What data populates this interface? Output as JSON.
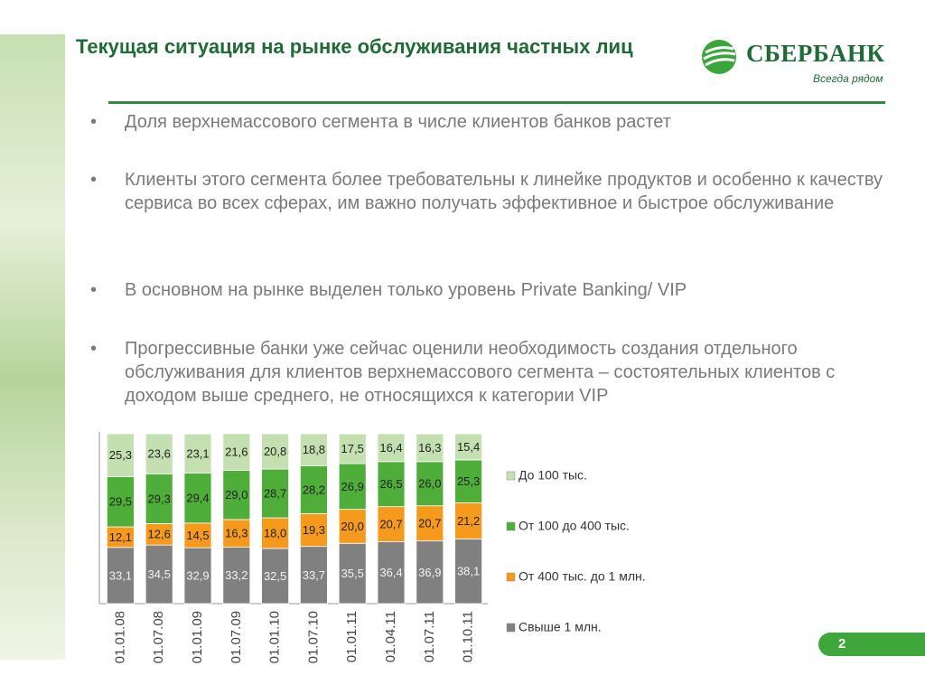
{
  "header": {
    "title": "Текущая ситуация на рынке обслуживания частных лиц",
    "logo_name": "СБЕРБАНК",
    "logo_slogan": "Всегда рядом"
  },
  "bullets": [
    "Доля верхнемассового сегмента в числе клиентов банков растет",
    "Клиенты этого сегмента более требовательны к линейке продуктов и особенно к качеству сервиса во всех сферах, им важно получать эффективное и быстрое обслуживание",
    "В основном на рынке выделен только уровень Private Banking/ VIP",
    "Прогрессивные банки уже сейчас оценили необходимость создания отдельного обслуживания для клиентов верхнемассового сегмента – состоятельных клиентов с доходом выше среднего, не относящихся к категории VIP"
  ],
  "page_number": "2",
  "chart_data": {
    "type": "stacked_bar",
    "categories": [
      "01.01.08",
      "01.07.08",
      "01.01.09",
      "01.07.09",
      "01.01.10",
      "01.07.10",
      "01.01.11",
      "01.04.11",
      "01.07.11",
      "01.10.11"
    ],
    "ylim": [
      0,
      100
    ],
    "series": [
      {
        "name": "Свыше 1 млн.",
        "color": "#808080",
        "label_color": "#f2f2f2",
        "values": [
          33.1,
          34.5,
          32.9,
          33.2,
          32.5,
          33.7,
          35.5,
          36.4,
          36.9,
          38.1
        ],
        "value_labels": [
          "33,1",
          "34,5",
          "32,9",
          "33,2",
          "32,5",
          "33,7",
          "35,5",
          "36,4",
          "36,9",
          "38,1"
        ]
      },
      {
        "name": "От 400 тыс. до 1 млн.",
        "color": "#f59a1c",
        "label_color": "#222222",
        "values": [
          12.1,
          12.6,
          14.5,
          16.3,
          18.0,
          19.3,
          20.0,
          20.7,
          20.7,
          21.2
        ],
        "value_labels": [
          "12,1",
          "12,6",
          "14,5",
          "16,3",
          "18,0",
          "19,3",
          "20,0",
          "20,7",
          "20,7",
          "21,2"
        ]
      },
      {
        "name": "От 100 до 400 тыс.",
        "color": "#4fae3a",
        "label_color": "#222222",
        "values": [
          29.5,
          29.3,
          29.4,
          29.0,
          28.7,
          28.2,
          26.9,
          26.5,
          26.0,
          25.3
        ],
        "value_labels": [
          "29,5",
          "29,3",
          "29,4",
          "29,0",
          "28,7",
          "28,2",
          "26,9",
          "26,5",
          "26,0",
          "25,3"
        ]
      },
      {
        "name": "До 100 тыс.",
        "color": "#c4e0b0",
        "label_color": "#222222",
        "values": [
          25.3,
          23.6,
          23.1,
          21.6,
          20.8,
          18.8,
          17.5,
          16.4,
          16.3,
          15.4
        ],
        "value_labels": [
          "25,3",
          "23,6",
          "23,1",
          "21,6",
          "20,8",
          "18,8",
          "17,5",
          "16,4",
          "16,3",
          "15,4"
        ]
      }
    ]
  }
}
